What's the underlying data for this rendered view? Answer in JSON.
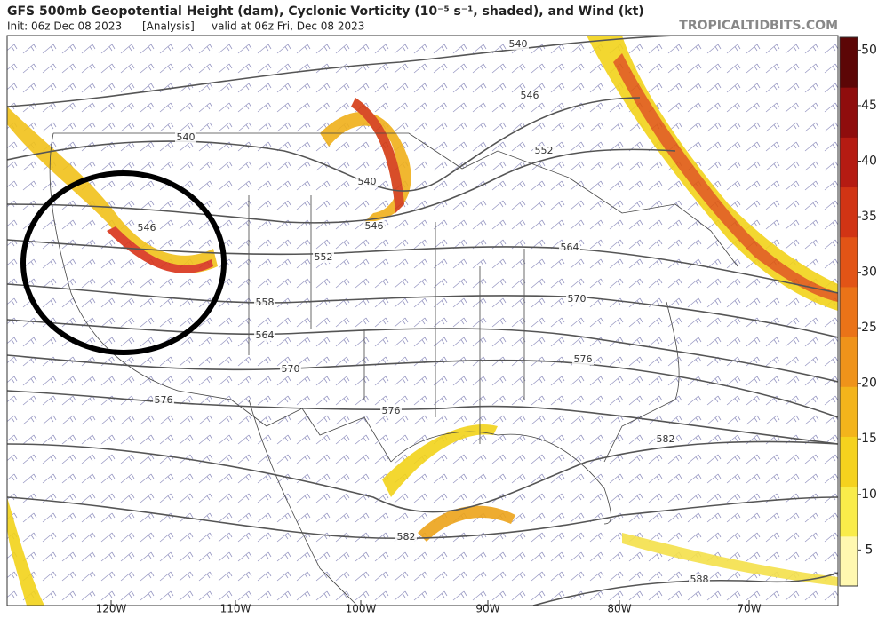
{
  "header": {
    "title": "GFS 500mb Geopotential Height (dam), Cyclonic Vorticity (10⁻⁵ s⁻¹, shaded), and Wind (kt)",
    "init": "Init: 06z Dec 08 2023",
    "run": "[Analysis]",
    "valid": "valid at 06z Fri, Dec 08 2023",
    "source": "TROPICALTIDBITS.COM"
  },
  "colorbar": {
    "ticks": [
      5,
      10,
      15,
      20,
      25,
      30,
      35,
      40,
      45,
      50
    ]
  },
  "longitude_labels": [
    "120W",
    "110W",
    "100W",
    "90W",
    "80W",
    "70W"
  ],
  "contour_labels": [
    "540",
    "546",
    "540",
    "552",
    "540",
    "546",
    "546",
    "552",
    "564",
    "558",
    "570",
    "564",
    "570",
    "576",
    "576",
    "576",
    "582",
    "582",
    "588"
  ]
}
